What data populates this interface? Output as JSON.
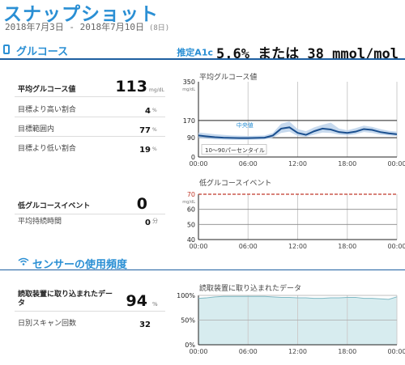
{
  "header": {
    "title": "スナップショット",
    "date_range": "2018年7月3日 - 2018年7月10日",
    "days": "(8日)"
  },
  "glucose": {
    "section_title": "グルコース",
    "icon": "phone-icon",
    "a1c_label": "推定A1c",
    "a1c_value": "5.6% または 38 mmol/mol",
    "stats": [
      {
        "label": "平均グルコース値",
        "value": "113",
        "unit": "mg/dL"
      },
      {
        "label": "目標より高い割合",
        "value": "4",
        "unit": "%"
      },
      {
        "label": "目標範囲内",
        "value": "77",
        "unit": "%"
      },
      {
        "label": "目標より低い割合",
        "value": "19",
        "unit": "%"
      }
    ],
    "low_event_label": "低グルコースイベント",
    "low_event_value": "0",
    "low_duration_label": "平均持続時間",
    "low_duration_value": "0",
    "low_duration_unit": "分"
  },
  "sensor": {
    "section_title": "センサーの使用頻度",
    "icon": "wifi-icon",
    "stats": [
      {
        "label": "読取装置に取り込まれたデータ",
        "value": "94",
        "unit": "%"
      },
      {
        "label": "日別スキャン回数",
        "value": "32",
        "unit": ""
      }
    ]
  },
  "colors": {
    "accent": "#2a8fd4",
    "rule": "#1e5fa0",
    "median": "#1a4f8f",
    "band": "#b8d0ea",
    "low": "#c0392b",
    "data_fill": "#d7ecef",
    "data_line": "#7fb9c4"
  },
  "chart_data": [
    {
      "type": "line",
      "title": "平均グルコース値",
      "x_ticks": [
        "00:00",
        "06:00",
        "12:00",
        "18:00",
        "00:00"
      ],
      "y_ticks": [
        "350",
        "170",
        "90",
        "0"
      ],
      "y_unit": "mg/dL",
      "ylim": [
        0,
        350
      ],
      "target_range": [
        90,
        170
      ],
      "median_label": "中央値",
      "band_label": "10～90パーセンタイル",
      "series": [
        {
          "name": "中央値",
          "x": [
            0,
            1,
            2,
            3,
            4,
            5,
            6,
            7,
            8,
            9,
            10,
            11,
            12,
            13,
            14,
            15,
            16,
            17,
            18,
            19,
            20,
            21,
            22,
            23,
            24
          ],
          "values": [
            100,
            96,
            92,
            90,
            89,
            88,
            88,
            89,
            90,
            100,
            132,
            138,
            112,
            103,
            120,
            132,
            128,
            116,
            112,
            118,
            130,
            126,
            116,
            110,
            106
          ]
        },
        {
          "name": "10～90パーセンタイル",
          "x": [
            0,
            2,
            4,
            6,
            8,
            9,
            10,
            11,
            12,
            13,
            14,
            15,
            16,
            17,
            18,
            19,
            20,
            21,
            22,
            23,
            24
          ],
          "low": [
            88,
            82,
            80,
            80,
            82,
            90,
            112,
            118,
            98,
            94,
            104,
            114,
            112,
            104,
            100,
            106,
            116,
            112,
            104,
            100,
            98
          ],
          "high": [
            114,
            106,
            100,
            98,
            100,
            112,
            155,
            165,
            130,
            120,
            138,
            150,
            160,
            132,
            124,
            134,
            146,
            140,
            130,
            122,
            118
          ]
        }
      ]
    },
    {
      "type": "line",
      "title": "低グルコースイベント",
      "x_ticks": [
        "00:00",
        "06:00",
        "12:00",
        "18:00",
        "00:00"
      ],
      "y_ticks": [
        "70",
        "60",
        "50",
        "40"
      ],
      "y_unit": "mg/dL",
      "ylim": [
        40,
        70
      ],
      "series": []
    },
    {
      "type": "area",
      "title": "読取装置に取り込まれたデータ",
      "x_ticks": [
        "00:00",
        "06:00",
        "12:00",
        "18:00",
        "00:00"
      ],
      "y_ticks": [
        "100%",
        "50%",
        "0%"
      ],
      "ylim": [
        0,
        100
      ],
      "series": [
        {
          "name": "読取装置に取り込まれたデータ",
          "x": [
            0,
            1,
            2,
            3,
            4,
            5,
            6,
            7,
            8,
            9,
            10,
            11,
            12,
            13,
            14,
            15,
            16,
            17,
            18,
            19,
            20,
            21,
            22,
            23,
            24
          ],
          "values": [
            94,
            95,
            97,
            98,
            98,
            98,
            98,
            98,
            98,
            97,
            96,
            96,
            95,
            95,
            94,
            94,
            95,
            95,
            96,
            96,
            94,
            94,
            93,
            92,
            97
          ]
        }
      ]
    }
  ]
}
